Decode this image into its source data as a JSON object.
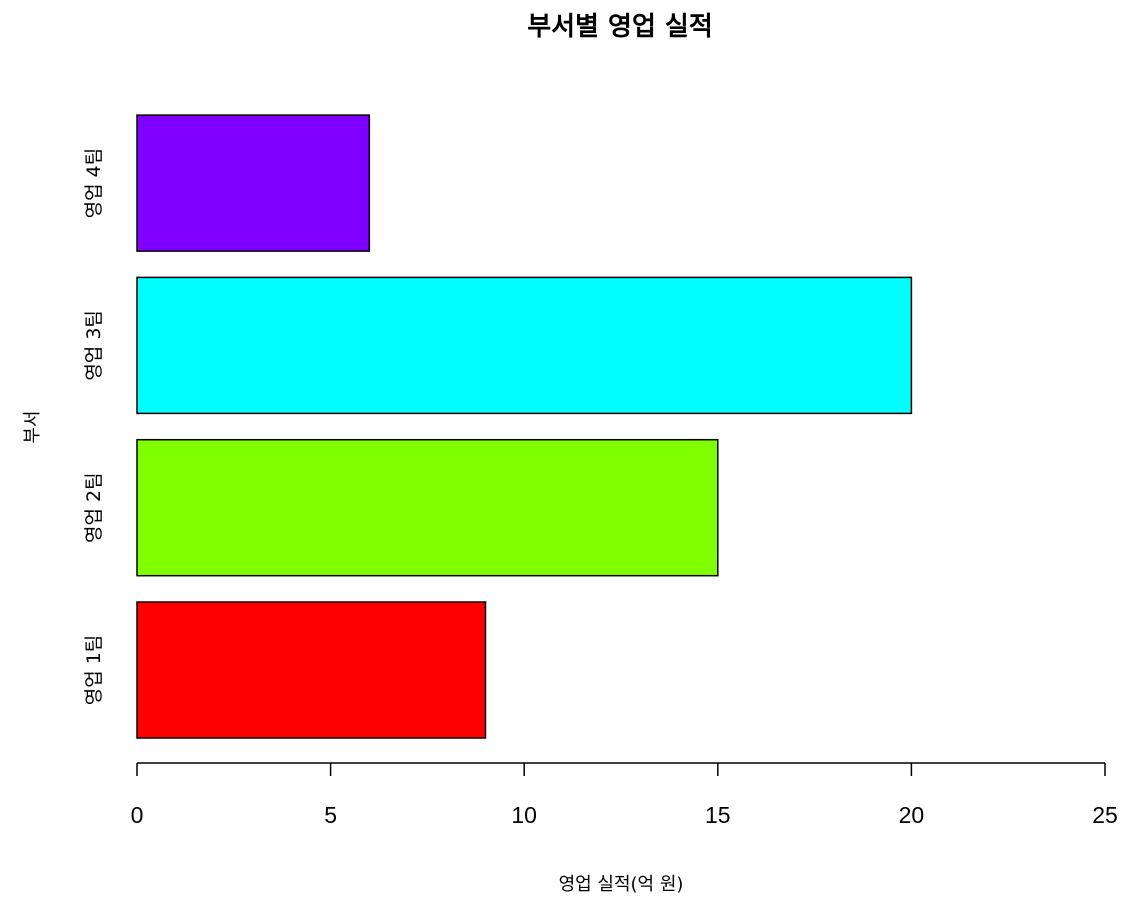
{
  "chart_data": {
    "type": "bar",
    "orientation": "horizontal",
    "title": "부서별 영업 실적",
    "xlabel": "영업 실적(억 원)",
    "ylabel": "부서",
    "categories": [
      "영업 1팀",
      "영업 2팀",
      "영업 3팀",
      "영업 4팀"
    ],
    "values": [
      9,
      15,
      20,
      6
    ],
    "colors": [
      "#FF0000",
      "#80FF00",
      "#00FFFF",
      "#8000FF"
    ],
    "xlim": [
      0,
      25
    ],
    "xticks": [
      0,
      5,
      10,
      15,
      20,
      25
    ],
    "grid": false,
    "legend": "none"
  }
}
